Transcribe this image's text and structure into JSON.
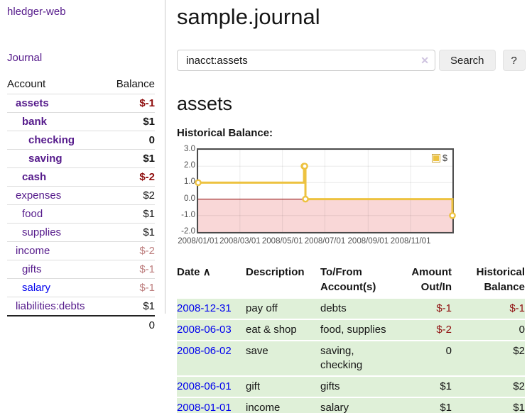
{
  "colors": {
    "link_visited_purple": "#551a8b",
    "link_blue": "#0000ee",
    "negative_strong": "#8f0e0e",
    "negative_soft": "#bd7e7e",
    "row_green": "#dff0d8",
    "series_gold": "#edc240",
    "negative_region_pink": "#f9d7d7",
    "zero_line_red": "#8b0000"
  },
  "sidebar": {
    "app_link": "hledger-web",
    "journal_link": "Journal",
    "headers": {
      "account": "Account",
      "balance": "Balance"
    },
    "accounts": [
      {
        "name": "assets",
        "balance": "$-1"
      },
      {
        "name": "bank",
        "balance": "$1"
      },
      {
        "name": "checking",
        "balance": "0"
      },
      {
        "name": "saving",
        "balance": "$1"
      },
      {
        "name": "cash",
        "balance": "$-2"
      },
      {
        "name": "expenses",
        "balance": "$2"
      },
      {
        "name": "food",
        "balance": "$1"
      },
      {
        "name": "supplies",
        "balance": "$1"
      },
      {
        "name": "income",
        "balance": "$-2"
      },
      {
        "name": "gifts",
        "balance": "$-1"
      },
      {
        "name": "salary",
        "balance": "$-1"
      },
      {
        "name": "liabilities:debts",
        "balance": "$1"
      }
    ],
    "total": "0"
  },
  "main": {
    "title": "sample.journal",
    "account_heading": "assets",
    "chart_label": "Historical Balance:"
  },
  "search": {
    "value": "inacct:assets",
    "clear_icon": "✕",
    "button_label": "Search",
    "help_label": "?"
  },
  "chart_data": {
    "type": "line",
    "step": true,
    "title": "Historical Balance:",
    "series": [
      {
        "name": "$",
        "color": "#edc240",
        "points": [
          [
            "2008-01-01",
            1
          ],
          [
            "2008-06-01",
            2
          ],
          [
            "2008-06-02",
            2
          ],
          [
            "2008-06-03",
            0
          ],
          [
            "2008-12-31",
            -1
          ]
        ]
      }
    ],
    "x_range": [
      "2008-01-01",
      "2008-12-31"
    ],
    "x_ticks": [
      {
        "date": "2008-01-01",
        "label": "2008/01/01"
      },
      {
        "date": "2008-03-01",
        "label": "2008/03/01"
      },
      {
        "date": "2008-05-01",
        "label": "2008/05/01"
      },
      {
        "date": "2008-07-01",
        "label": "2008/07/01"
      },
      {
        "date": "2008-09-01",
        "label": "2008/09/01"
      },
      {
        "date": "2008-11-01",
        "label": "2008/11/01"
      }
    ],
    "y_ticks": [
      "3.0",
      "2.0",
      "1.0",
      "0.0",
      "-1.0",
      "-2.0"
    ],
    "ylim": [
      -2,
      3
    ],
    "grid": true,
    "legend_position": "top-right",
    "legend_label": "$"
  },
  "register": {
    "headers": {
      "date": "Date",
      "sort_icon": "∧",
      "description": "Description",
      "account": "To/From Account(s)",
      "amount": "Amount Out/In",
      "balance": "Historical Balance"
    },
    "rows": [
      {
        "date": "2008-12-31",
        "description": "pay off",
        "account": "debts",
        "amount": "$-1",
        "balance": "$-1"
      },
      {
        "date": "2008-06-03",
        "description": "eat & shop",
        "account": "food, supplies",
        "amount": "$-2",
        "balance": "0"
      },
      {
        "date": "2008-06-02",
        "description": "save",
        "account": "saving, checking",
        "amount": "0",
        "balance": "$2"
      },
      {
        "date": "2008-06-01",
        "description": "gift",
        "account": "gifts",
        "amount": "$1",
        "balance": "$2"
      },
      {
        "date": "2008-01-01",
        "description": "income",
        "account": "salary",
        "amount": "$1",
        "balance": "$1"
      }
    ]
  }
}
